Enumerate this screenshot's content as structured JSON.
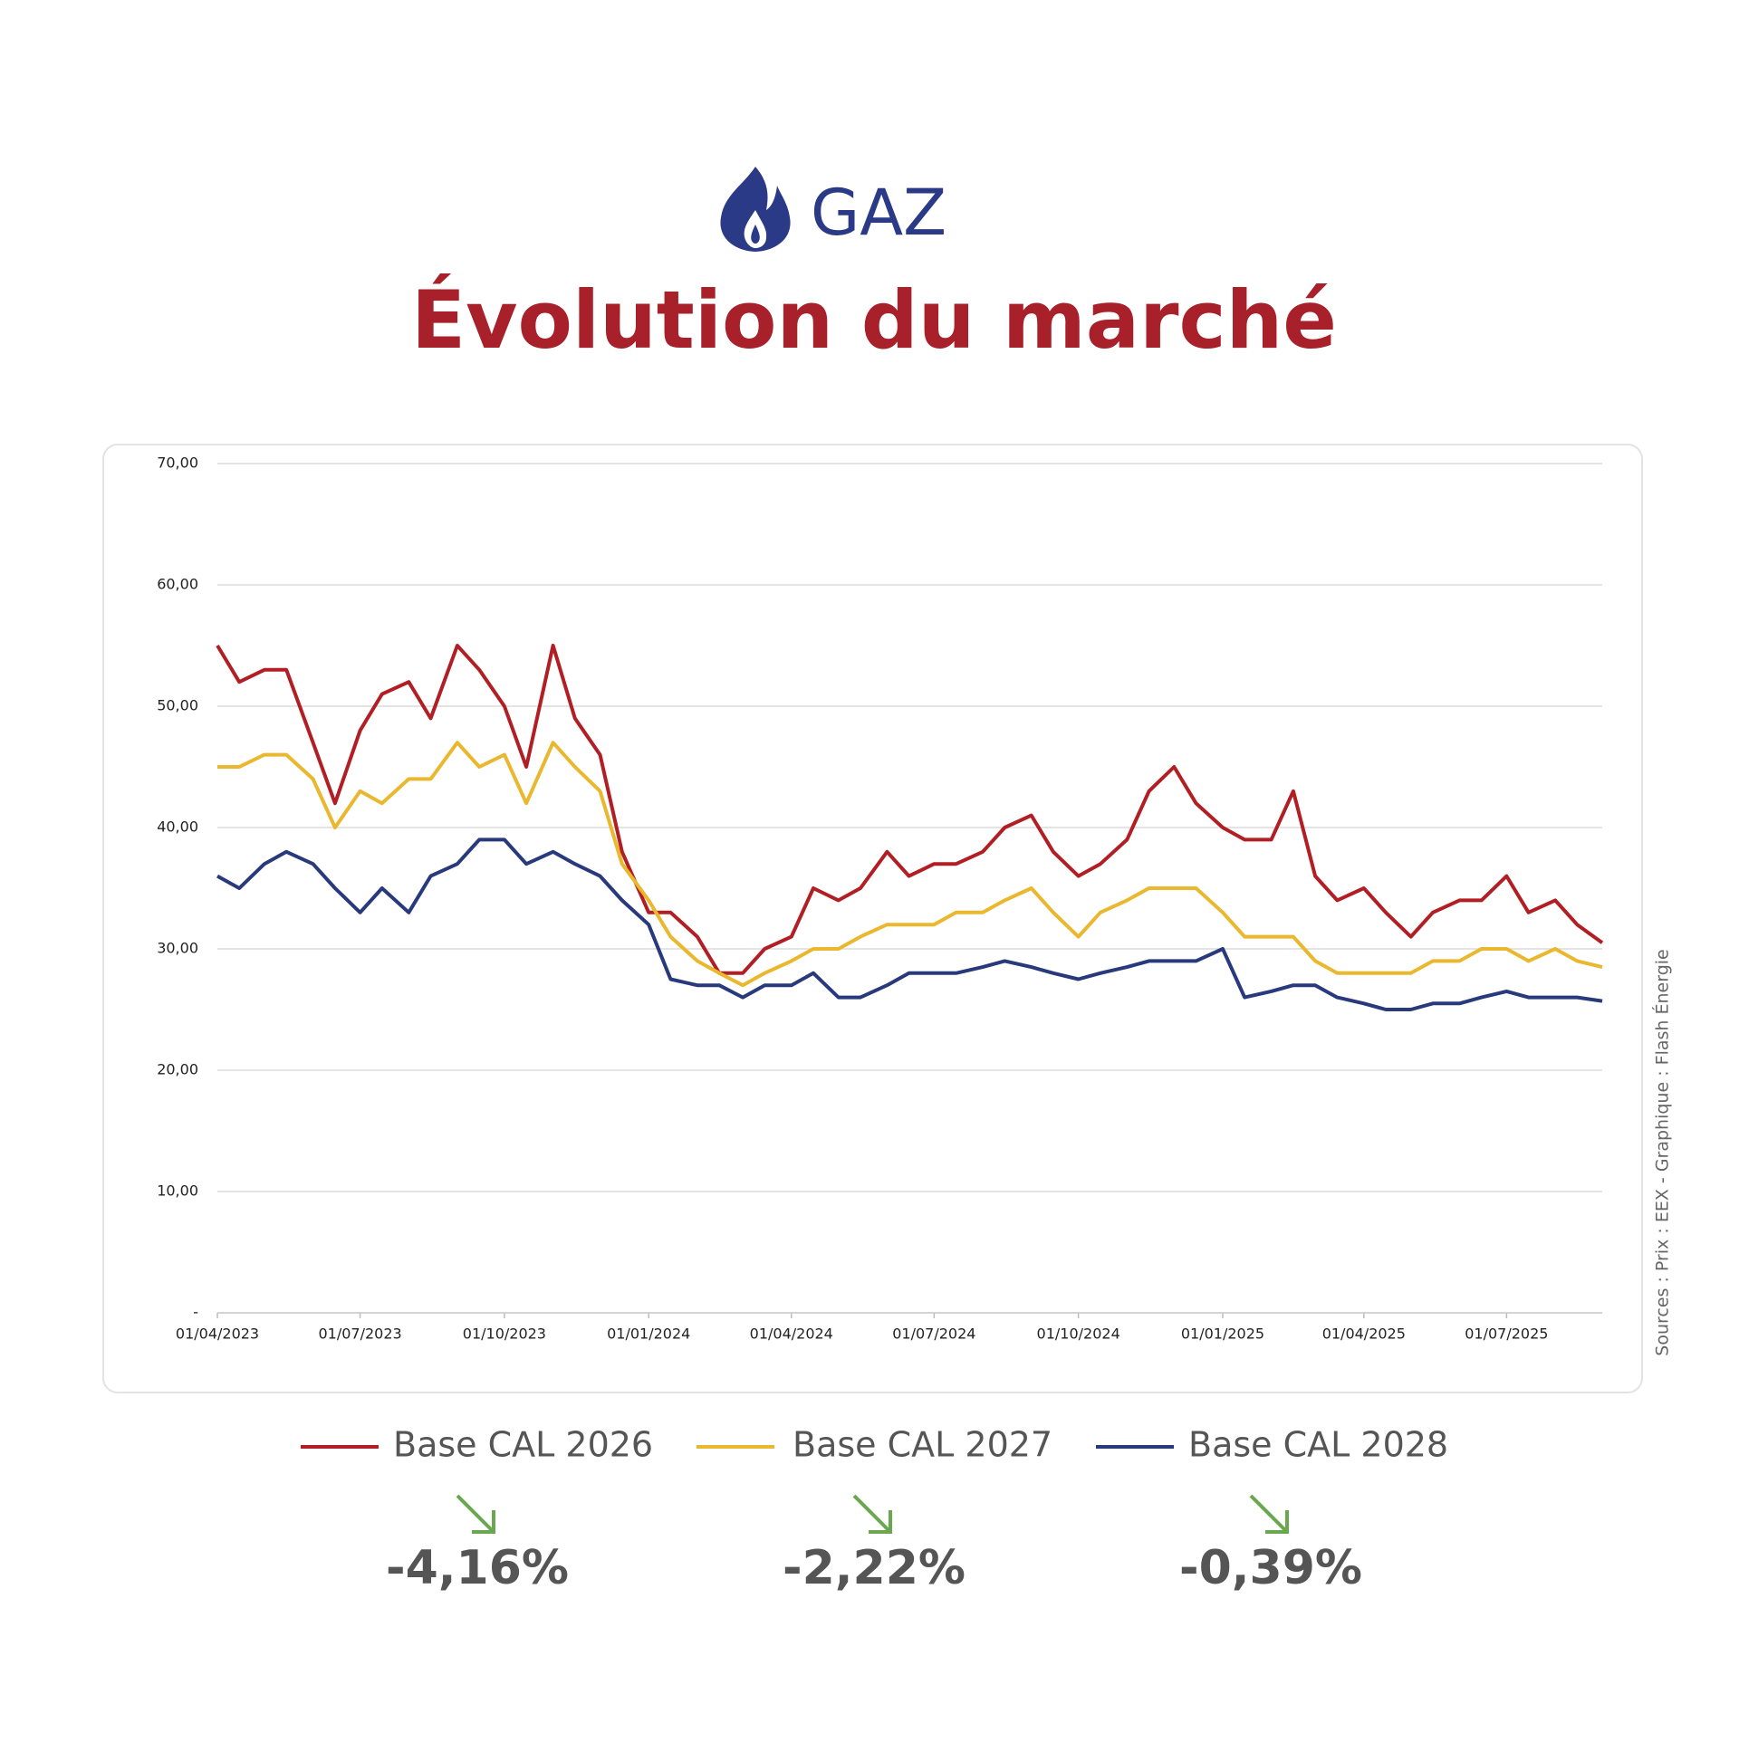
{
  "header": {
    "logo_text": "GAZ",
    "title": "Évolution du marché"
  },
  "chart_data": {
    "type": "line",
    "x": [
      "01/04/2023",
      "15/04/2023",
      "01/05/2023",
      "15/05/2023",
      "01/06/2023",
      "15/06/2023",
      "01/07/2023",
      "15/07/2023",
      "01/08/2023",
      "15/08/2023",
      "01/09/2023",
      "15/09/2023",
      "01/10/2023",
      "15/10/2023",
      "01/11/2023",
      "15/11/2023",
      "01/12/2023",
      "15/12/2023",
      "01/01/2024",
      "15/01/2024",
      "01/02/2024",
      "15/02/2024",
      "01/03/2024",
      "15/03/2024",
      "01/04/2024",
      "15/04/2024",
      "01/05/2024",
      "15/05/2024",
      "01/06/2024",
      "15/06/2024",
      "01/07/2024",
      "15/07/2024",
      "01/08/2024",
      "15/08/2024",
      "01/09/2024",
      "15/09/2024",
      "01/10/2024",
      "15/10/2024",
      "01/11/2024",
      "15/11/2024",
      "01/12/2024",
      "15/12/2024",
      "01/01/2025",
      "15/01/2025",
      "01/02/2025",
      "15/02/2025",
      "01/03/2025",
      "15/03/2025",
      "01/04/2025",
      "15/04/2025",
      "01/05/2025",
      "15/05/2025",
      "01/06/2025",
      "15/06/2025",
      "01/07/2025",
      "15/07/2025",
      "01/08/2025",
      "15/08/2025",
      "31/08/2025"
    ],
    "series": [
      {
        "name": "Base CAL 2026",
        "color": "#b11f25",
        "values": [
          55,
          52,
          53,
          53,
          47,
          42,
          48,
          51,
          52,
          49,
          55,
          53,
          50,
          45,
          55,
          49,
          46,
          38,
          33,
          33,
          31,
          28,
          28,
          30,
          31,
          35,
          34,
          35,
          38,
          36,
          37,
          37,
          38,
          40,
          41,
          38,
          36,
          37,
          39,
          43,
          45,
          42,
          40,
          39,
          39,
          43,
          36,
          34,
          35,
          33,
          31,
          33,
          34,
          34,
          36,
          33,
          34,
          32,
          30.5
        ]
      },
      {
        "name": "Base CAL 2027",
        "color": "#e9b82e",
        "values": [
          45,
          45,
          46,
          46,
          44,
          40,
          43,
          42,
          44,
          44,
          47,
          45,
          46,
          42,
          47,
          45,
          43,
          37,
          34,
          31,
          29,
          28,
          27,
          28,
          29,
          30,
          30,
          31,
          32,
          32,
          32,
          33,
          33,
          34,
          35,
          33,
          31,
          33,
          34,
          35,
          35,
          35,
          33,
          31,
          31,
          31,
          29,
          28,
          28,
          28,
          28,
          29,
          29,
          30,
          30,
          29,
          30,
          29,
          28.5
        ]
      },
      {
        "name": "Base CAL 2028",
        "color": "#283a7c",
        "values": [
          36,
          35,
          37,
          38,
          37,
          35,
          33,
          35,
          33,
          36,
          37,
          39,
          39,
          37,
          38,
          37,
          36,
          34,
          32,
          27.5,
          27,
          27,
          26,
          27,
          27,
          28,
          26,
          26,
          27,
          28,
          28,
          28,
          28.5,
          29,
          28.5,
          28,
          27.5,
          28,
          28.5,
          29,
          29,
          29,
          30,
          26,
          26.5,
          27,
          27,
          26,
          25.5,
          25,
          25,
          25.5,
          25.5,
          26,
          26.5,
          26,
          26,
          26,
          25.7
        ]
      }
    ],
    "xlim": [
      "01/04/2023",
      "31/08/2025"
    ],
    "xticks": [
      "01/04/2023",
      "01/07/2023",
      "01/10/2023",
      "01/01/2024",
      "01/04/2024",
      "01/07/2024",
      "01/10/2024",
      "01/01/2025",
      "01/04/2025",
      "01/07/2025"
    ],
    "ylim": [
      0,
      70
    ],
    "yticks": [
      {
        "value": 0,
        "label": "-"
      },
      {
        "value": 10,
        "label": "10,00"
      },
      {
        "value": 20,
        "label": "20,00"
      },
      {
        "value": 30,
        "label": "30,00"
      },
      {
        "value": 40,
        "label": "40,00"
      },
      {
        "value": 50,
        "label": "50,00"
      },
      {
        "value": 60,
        "label": "60,00"
      },
      {
        "value": 70,
        "label": "70,00"
      }
    ],
    "grid": true
  },
  "source": "Sources : Prix : EEX - Graphique : Flash Énergie",
  "changes": [
    "-4,16%",
    "-2,22%",
    "-0,39%"
  ]
}
